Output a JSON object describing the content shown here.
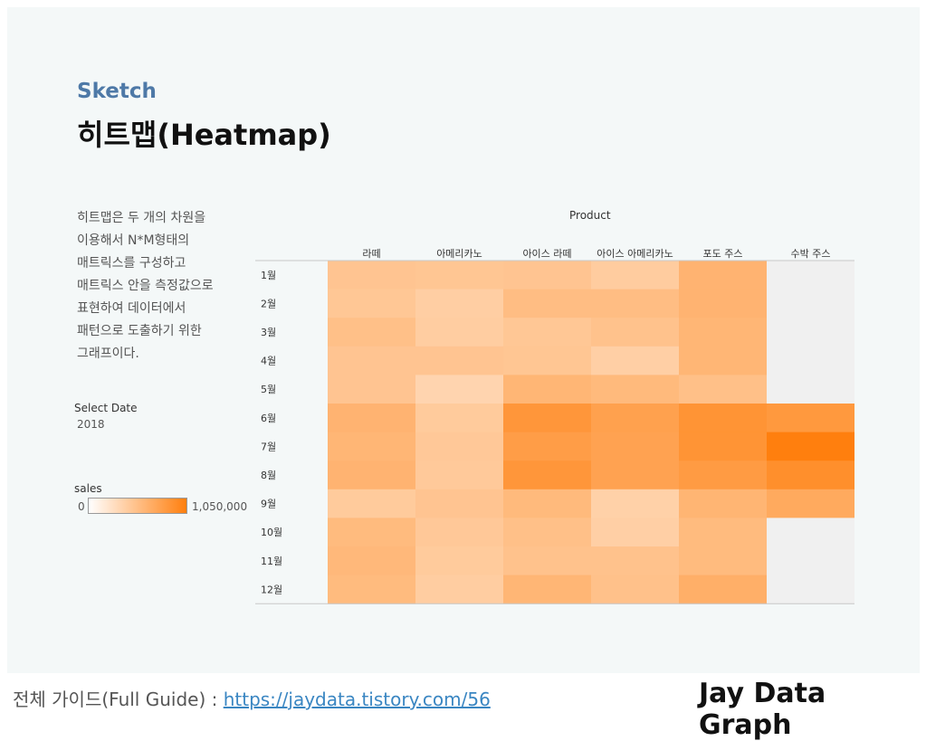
{
  "header": {
    "subtitle": "Sketch",
    "title": "히트맵(Heatmap)"
  },
  "description": [
    "히트맵은 두 개의 차원을",
    "이용해서 N*M형태의",
    "매트릭스를 구성하고",
    "매트릭스 안을 측정값으로",
    "표현하여 데이터에서",
    "패턴으로 도출하기 위한",
    "그래프이다."
  ],
  "filter": {
    "label": "Select Date",
    "value": "2018"
  },
  "legend": {
    "label": "sales",
    "min_label": "0",
    "max_label": "1,050,000",
    "low_color": "#ffffff",
    "high_color": "#ff7f0e"
  },
  "chart_data": {
    "type": "heatmap",
    "column_header": "Product",
    "columns": [
      "라떼",
      "아메리카노",
      "아이스 라떼",
      "아이스 아메리카노",
      "포도 주스",
      "수박 주스"
    ],
    "rows": [
      "1월",
      "2월",
      "3월",
      "4월",
      "5월",
      "6월",
      "7월",
      "8월",
      "9월",
      "10월",
      "11월",
      "12월"
    ],
    "value_range": [
      0,
      1050000
    ],
    "empty_cell_color": "#f0f0f0",
    "values": [
      [
        480000,
        470000,
        480000,
        420000,
        620000,
        null
      ],
      [
        460000,
        400000,
        540000,
        540000,
        620000,
        null
      ],
      [
        520000,
        410000,
        460000,
        500000,
        600000,
        null
      ],
      [
        480000,
        480000,
        470000,
        390000,
        600000,
        null
      ],
      [
        480000,
        350000,
        600000,
        570000,
        520000,
        null
      ],
      [
        620000,
        430000,
        860000,
        770000,
        880000,
        840000
      ],
      [
        600000,
        450000,
        800000,
        760000,
        880000,
        1050000
      ],
      [
        620000,
        440000,
        860000,
        760000,
        820000,
        920000
      ],
      [
        430000,
        480000,
        570000,
        380000,
        610000,
        700000
      ],
      [
        560000,
        450000,
        520000,
        390000,
        560000,
        null
      ],
      [
        580000,
        430000,
        500000,
        500000,
        560000,
        null
      ],
      [
        560000,
        410000,
        600000,
        510000,
        660000,
        null
      ]
    ]
  },
  "footer": {
    "guide_label": "전체 가이드(Full Guide) : ",
    "guide_link": "https://jaydata.tistory.com/56",
    "brand": "Jay Data Graph"
  }
}
